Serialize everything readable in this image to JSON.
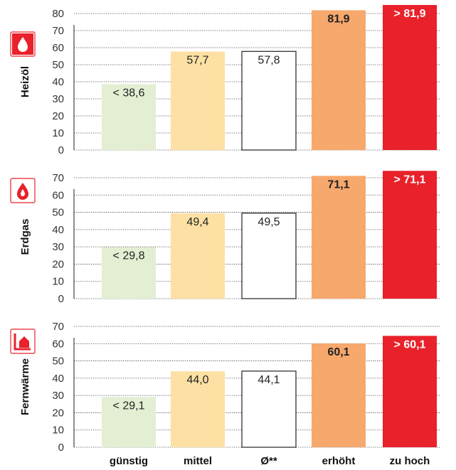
{
  "chart_data": [
    {
      "type": "bar",
      "panel": "Heizöl",
      "categories": [
        "günstig",
        "mittel",
        "Ø**",
        "erhöht",
        "zu hoch"
      ],
      "values": [
        38.6,
        57.7,
        57.8,
        81.9,
        85.0
      ],
      "value_labels": [
        "< 38,6",
        "57,7",
        "57,8",
        "81,9",
        "> 81,9"
      ],
      "ylabel": "Heizöl",
      "yticks": [
        0,
        10,
        20,
        30,
        40,
        50,
        60,
        70,
        80
      ],
      "ylim": [
        0,
        80
      ],
      "grid": true,
      "icon": "oil-drop-icon"
    },
    {
      "type": "bar",
      "panel": "Erdgas",
      "categories": [
        "günstig",
        "mittel",
        "Ø**",
        "erhöht",
        "zu hoch"
      ],
      "values": [
        29.8,
        49.4,
        49.5,
        71.1,
        74.0
      ],
      "value_labels": [
        "< 29,8",
        "49,4",
        "49,5",
        "71,1",
        "> 71,1"
      ],
      "ylabel": "Erdgas",
      "yticks": [
        0,
        10,
        20,
        30,
        40,
        50,
        60,
        70
      ],
      "ylim": [
        0,
        70
      ],
      "grid": true,
      "icon": "gas-flame-icon"
    },
    {
      "type": "bar",
      "panel": "Fernwärme",
      "categories": [
        "günstig",
        "mittel",
        "Ø**",
        "erhöht",
        "zu hoch"
      ],
      "values": [
        29.1,
        44.0,
        44.1,
        60.1,
        64.5
      ],
      "value_labels": [
        "< 29,1",
        "44,0",
        "44,1",
        "60,1",
        "> 60,1"
      ],
      "ylabel": "Fernwärme",
      "yticks": [
        0,
        10,
        20,
        30,
        40,
        50,
        60,
        70
      ],
      "ylim": [
        0,
        70
      ],
      "grid": true,
      "icon": "district-heating-icon"
    }
  ],
  "categories": [
    "günstig",
    "mittel",
    "Ø**",
    "erhöht",
    "zu hoch"
  ],
  "colors": {
    "günstig": "#e3eed3",
    "mittel": "#fde0a3",
    "avg": "#ffffff",
    "erhöht": "#f7a86c",
    "zu hoch": "#e8212b",
    "icon": "#e8212b"
  }
}
